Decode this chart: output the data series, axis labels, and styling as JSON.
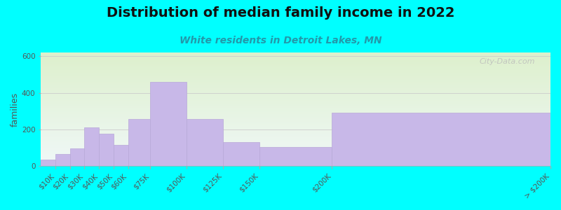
{
  "title": "Distribution of median family income in 2022",
  "subtitle": "White residents in Detroit Lakes, MN",
  "ylabel": "families",
  "bar_color": "#C8B8E8",
  "bar_edge_color": "#b8a8d8",
  "background_outer": "#00FFFF",
  "plot_bg_top_color": "#ddf0cc",
  "plot_bg_bottom_color": "#f0f8f8",
  "title_fontsize": 14,
  "subtitle_fontsize": 10,
  "ylabel_fontsize": 9,
  "tick_fontsize": 7.5,
  "ylim": [
    0,
    620
  ],
  "yticks": [
    0,
    200,
    400,
    600
  ],
  "watermark": "City-Data.com",
  "edges": [
    0,
    10,
    20,
    30,
    40,
    50,
    60,
    75,
    100,
    125,
    150,
    200,
    350
  ],
  "tick_labels": [
    "$10K",
    "$20K",
    "$30K",
    "$40K",
    "$50K",
    "$60K",
    "$75K",
    "$100K",
    "$125K",
    "$150K",
    "$200K",
    "> $200K"
  ],
  "values": [
    35,
    65,
    95,
    210,
    175,
    115,
    255,
    460,
    255,
    130,
    105,
    290
  ]
}
